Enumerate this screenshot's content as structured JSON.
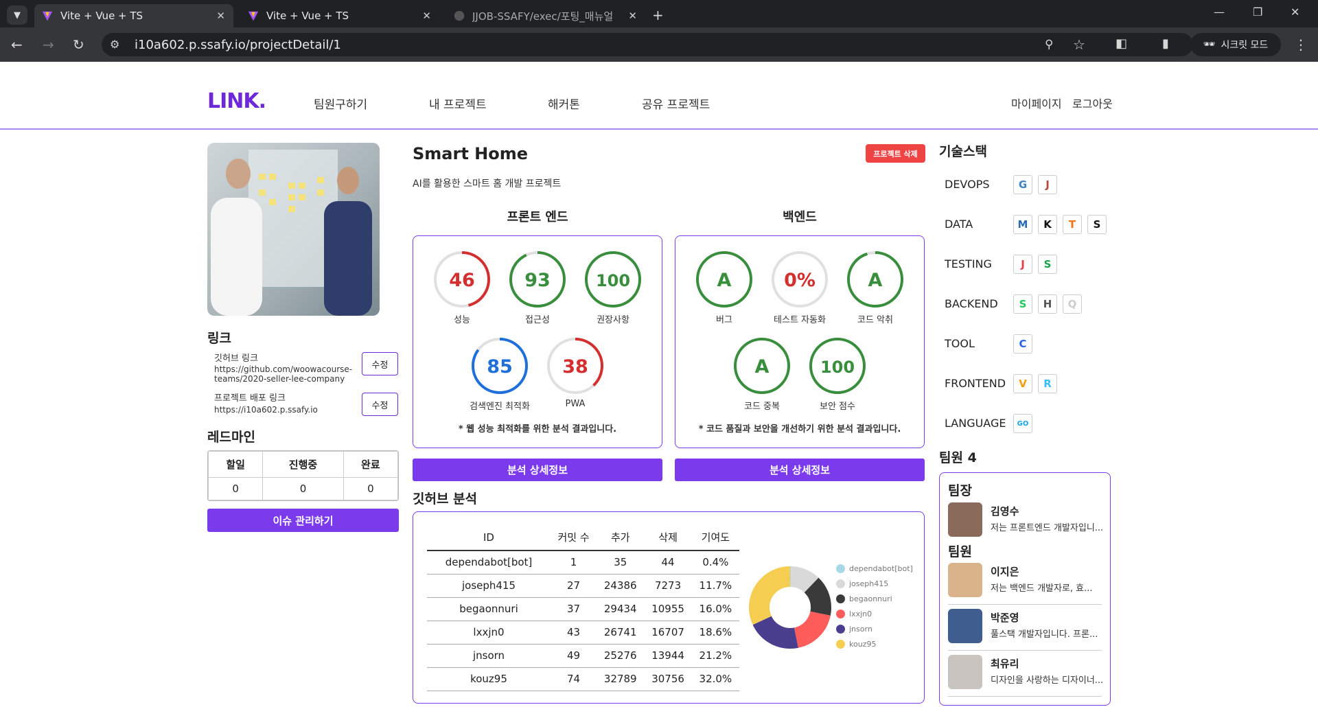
{
  "browser": {
    "tabs": [
      {
        "title": "Vite + Vue + TS"
      },
      {
        "title": "Vite + Vue + TS"
      },
      {
        "title": "JJOB-SSAFY/exec/포팅_매뉴얼"
      }
    ],
    "url": "i10a602.p.ssafy.io/projectDetail/1",
    "incognito_label": "시크릿 모드"
  },
  "nav": {
    "logo": "LINK.",
    "links": [
      "팀원구하기",
      "내 프로젝트",
      "해커톤",
      "공유 프로젝트"
    ],
    "right": [
      "마이페이지",
      "로그아웃"
    ]
  },
  "left": {
    "links_title": "링크",
    "github_label": "깃허브 링크",
    "github_url_line1": "https://github.com/woowacourse-",
    "github_url_line2": "teams/2020-seller-lee-company",
    "deploy_label": "프로젝트 배포 링크",
    "deploy_url": "https://i10a602.p.ssafy.io",
    "edit_label": "수정",
    "redmine_title": "레드마인",
    "redmine_headers": [
      "할일",
      "진행중",
      "완료"
    ],
    "redmine_values": [
      "0",
      "0",
      "0"
    ],
    "issue_button": "이슈 관리하기"
  },
  "project": {
    "title": "Smart Home",
    "description": "AI를 활용한 스마트 홈 개발 프로젝트",
    "delete_button": "프로젝트 삭제"
  },
  "frontend": {
    "title": "프론트 엔드",
    "gauges": [
      {
        "value": "46",
        "label": "성능",
        "percent": 46,
        "color": "#d32f2f"
      },
      {
        "value": "93",
        "label": "접근성",
        "percent": 93,
        "color": "#388e3c"
      },
      {
        "value": "100",
        "label": "권장사항",
        "percent": 100,
        "color": "#388e3c"
      },
      {
        "value": "85",
        "label": "검색엔진 최적화",
        "percent": 85,
        "color": "#1e6fd9"
      },
      {
        "value": "38",
        "label": "PWA",
        "percent": 38,
        "color": "#d32f2f"
      }
    ],
    "note": "* 웹 성능 최적화를 위한 분석 결과입니다.",
    "detail_button": "분석 상세정보"
  },
  "backend": {
    "title": "백엔드",
    "gauges": [
      {
        "value": "A",
        "label": "버그",
        "percent": 100,
        "color": "#388e3c"
      },
      {
        "value": "0%",
        "label": "테스트 자동화",
        "percent": 0,
        "color": "#d32f2f"
      },
      {
        "value": "A",
        "label": "코드 악취",
        "percent": 95,
        "color": "#388e3c"
      },
      {
        "value": "A",
        "label": "코드 중복",
        "percent": 100,
        "color": "#388e3c"
      },
      {
        "value": "100",
        "label": "보안 점수",
        "percent": 100,
        "color": "#388e3c"
      }
    ],
    "note": "* 코드 품질과 보안을 개선하기 위한 분석 결과입니다.",
    "detail_button": "분석 상세정보"
  },
  "github": {
    "title": "깃허브 분석",
    "headers": [
      "ID",
      "커밋 수",
      "추가",
      "삭제",
      "기여도"
    ],
    "rows": [
      [
        "dependabot[bot]",
        "1",
        "35",
        "44",
        "0.4%"
      ],
      [
        "joseph415",
        "27",
        "24386",
        "7273",
        "11.7%"
      ],
      [
        "begaonnuri",
        "37",
        "29434",
        "10955",
        "16.0%"
      ],
      [
        "lxxjn0",
        "43",
        "26741",
        "16707",
        "18.6%"
      ],
      [
        "jnsorn",
        "49",
        "25276",
        "13944",
        "21.2%"
      ],
      [
        "kouz95",
        "74",
        "32789",
        "30756",
        "32.0%"
      ]
    ]
  },
  "chart_data": {
    "type": "pie",
    "title": "",
    "categories": [
      "dependabot[bot]",
      "joseph415",
      "begaonnuri",
      "lxxjn0",
      "jnsorn",
      "kouz95"
    ],
    "values": [
      0.4,
      11.7,
      16.0,
      18.6,
      21.2,
      32.0
    ],
    "colors": [
      "#a8d8e8",
      "#d9d9d9",
      "#3a3a3a",
      "#ff5c5c",
      "#4a3f8f",
      "#f5cd50"
    ],
    "legend": "right"
  },
  "stack": {
    "title": "기술스택",
    "rows": [
      {
        "name": "DEVOPS",
        "icons": [
          "G",
          "J"
        ],
        "colors": [
          "#3b82c4",
          "#b5483e"
        ]
      },
      {
        "name": "DATA",
        "icons": [
          "M",
          "K",
          "T",
          "S"
        ],
        "colors": [
          "#2b6cb0",
          "#111111",
          "#f97316",
          "#111111"
        ]
      },
      {
        "name": "TESTING",
        "icons": [
          "J",
          "S"
        ],
        "colors": [
          "#e53e3e",
          "#16a34a"
        ]
      },
      {
        "name": "BACKEND",
        "icons": [
          "S",
          "H",
          "Q"
        ],
        "colors": [
          "#22c55e",
          "#555555",
          "#cccccc"
        ]
      },
      {
        "name": "TOOL",
        "icons": [
          "C"
        ],
        "colors": [
          "#2563eb"
        ]
      },
      {
        "name": "FRONTEND",
        "icons": [
          "V",
          "R"
        ],
        "colors": [
          "#f59e0b",
          "#38bdf8"
        ]
      },
      {
        "name": "LANGUAGE",
        "icons": [
          "GO"
        ],
        "colors": [
          "#0ea5e9"
        ]
      }
    ]
  },
  "team": {
    "title": "팀원 4",
    "leader_title": "팀장",
    "member_title": "팀원",
    "leader": {
      "name": "김영수",
      "desc": "저는 프론트엔드 개발자입니...",
      "avatar_color": "#8a6a5a"
    },
    "members": [
      {
        "name": "이지은",
        "desc": "저는 백엔드 개발자로, 효...",
        "avatar_color": "#d9b48a"
      },
      {
        "name": "박준영",
        "desc": "풀스택 개발자입니다. 프론...",
        "avatar_color": "#3f5e8f"
      },
      {
        "name": "최유리",
        "desc": "디자인을 사랑하는 디자이너...",
        "avatar_color": "#c9c4c0"
      }
    ]
  }
}
